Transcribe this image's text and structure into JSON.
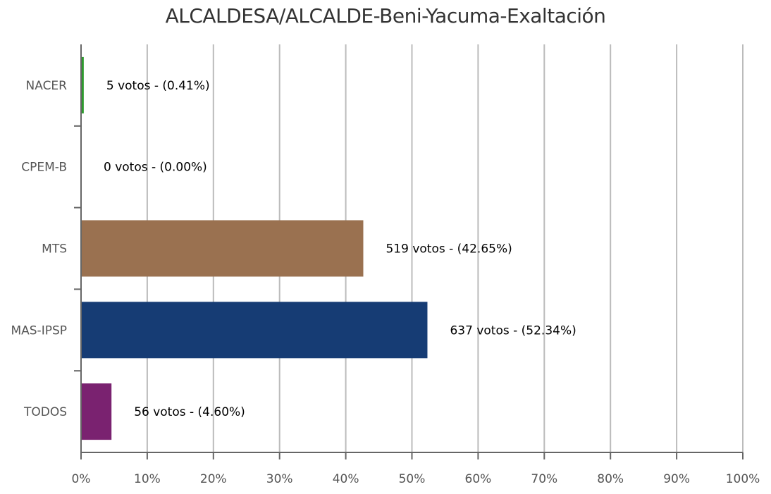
{
  "chart_data": {
    "type": "bar",
    "orientation": "horizontal",
    "title": "ALCALDESA/ALCALDE-Beni-Yacuma-Exaltación",
    "categories": [
      "NACER",
      "CPEM-B",
      "MTS",
      "MAS-IPSP",
      "TODOS"
    ],
    "votes": [
      5,
      0,
      519,
      637,
      56
    ],
    "values": [
      0.41,
      0.0,
      42.65,
      52.34,
      4.6
    ],
    "data_labels": [
      "5 votos - (0.41%)",
      "0 votos - (0.00%)",
      "519 votos - (42.65%)",
      "637 votos - (52.34%)",
      "56 votos - (4.60%)"
    ],
    "colors": [
      "#2e9a2e",
      "#cccccc",
      "#9a7150",
      "#163c74",
      "#7a2270"
    ],
    "xlim": [
      0,
      100
    ],
    "x_ticks": [
      "0%",
      "10%",
      "20%",
      "30%",
      "40%",
      "50%",
      "60%",
      "70%",
      "80%",
      "90%",
      "100%"
    ],
    "grid": true,
    "legend": "none"
  }
}
